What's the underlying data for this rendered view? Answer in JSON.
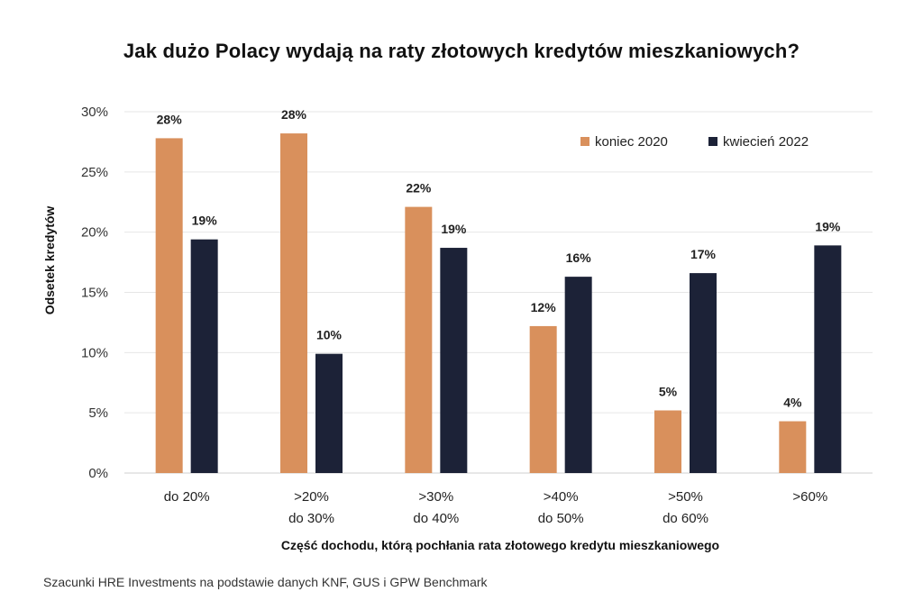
{
  "title": "Jak dużo Polacy wydają na raty złotowych kredytów mieszkaniowych?",
  "source": "Szacunki HRE Investments na podstawie danych KNF, GUS i GPW Benchmark",
  "chart_data": {
    "type": "bar",
    "xlabel": "Część dochodu, którą pochłania rata złotowego kredytu mieszkaniowego",
    "ylabel": "Odsetek kredytów",
    "ylim": [
      0,
      30
    ],
    "yticks": [
      "0%",
      "5%",
      "10%",
      "15%",
      "20%",
      "25%",
      "30%"
    ],
    "grid": true,
    "legend_position": "top-right",
    "categories": [
      [
        "do 20%"
      ],
      [
        ">20%",
        "do 30%"
      ],
      [
        ">30%",
        "do 40%"
      ],
      [
        ">40%",
        "do 50%"
      ],
      [
        ">50%",
        "do 60%"
      ],
      [
        ">60%"
      ]
    ],
    "series": [
      {
        "name": "koniec 2020",
        "color": "#D9905C",
        "values": [
          27.8,
          28.2,
          22.1,
          12.2,
          5.2,
          4.3
        ],
        "labels": [
          "28%",
          "28%",
          "22%",
          "12%",
          "5%",
          "4%"
        ]
      },
      {
        "name": "kwiecień 2022",
        "color": "#1C2237",
        "values": [
          19.4,
          9.9,
          18.7,
          16.3,
          16.6,
          18.9
        ],
        "labels": [
          "19%",
          "10%",
          "19%",
          "16%",
          "17%",
          "19%"
        ]
      }
    ]
  }
}
